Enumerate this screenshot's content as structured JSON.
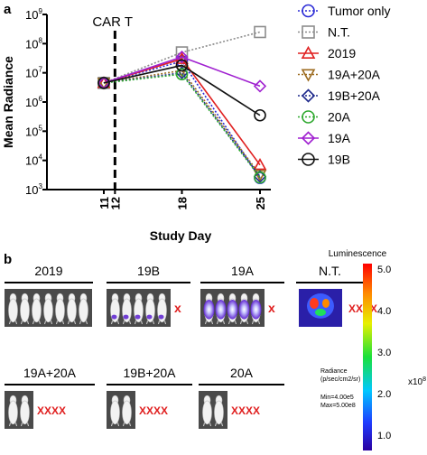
{
  "panel_a_label": "a",
  "panel_b_label": "b",
  "chart_data": {
    "type": "line",
    "title": "",
    "xlabel": "Study Day",
    "ylabel": "Mean Radiance",
    "log_y": true,
    "ylim": [
      1000,
      1000000000
    ],
    "y_ticks": [
      {
        "value": 1000,
        "base": "10",
        "exp": "3"
      },
      {
        "value": 10000,
        "base": "10",
        "exp": "4"
      },
      {
        "value": 100000,
        "base": "10",
        "exp": "5"
      },
      {
        "value": 1000000,
        "base": "10",
        "exp": "6"
      },
      {
        "value": 10000000,
        "base": "10",
        "exp": "7"
      },
      {
        "value": 100000000,
        "base": "10",
        "exp": "8"
      },
      {
        "value": 1000000000,
        "base": "10",
        "exp": "9"
      }
    ],
    "x": [
      11,
      18,
      25
    ],
    "x_ticks": [
      "11",
      "12",
      "18",
      "25"
    ],
    "x_tick_values": [
      11,
      12,
      18,
      25
    ],
    "annotation": {
      "text": "CAR T",
      "x": 12
    },
    "legend_position": "right",
    "series": [
      {
        "name": "Tumor only",
        "color": "#2b2bd6",
        "marker": "circle",
        "dash": "dotted",
        "values": [
          4500000,
          25000000,
          2500
        ]
      },
      {
        "name": "N.T.",
        "color": "#8c8c8c",
        "marker": "square",
        "dash": "dotted",
        "values": [
          4500000,
          50000000,
          250000000
        ]
      },
      {
        "name": "2019",
        "color": "#e02020",
        "marker": "triangle-up",
        "dash": "solid",
        "values": [
          4500000,
          30000000,
          7000
        ]
      },
      {
        "name": "19A+20A",
        "color": "#9c6b1f",
        "marker": "triangle-down",
        "dash": "dotted",
        "values": [
          4500000,
          12000000,
          3200
        ]
      },
      {
        "name": "19B+20A",
        "color": "#1f2a8c",
        "marker": "diamond",
        "dash": "dotted",
        "values": [
          4500000,
          10000000,
          2800
        ]
      },
      {
        "name": "20A",
        "color": "#2ea82e",
        "marker": "circle",
        "dash": "dotted",
        "values": [
          4500000,
          9000000,
          2600
        ]
      },
      {
        "name": "19A",
        "color": "#a020d0",
        "marker": "diamond",
        "dash": "solid",
        "values": [
          4500000,
          35000000,
          3500000
        ]
      },
      {
        "name": "19B",
        "color": "#111111",
        "marker": "circle",
        "dash": "solid",
        "values": [
          4500000,
          18000000,
          350000
        ]
      }
    ]
  },
  "imaging": {
    "groups_top": [
      {
        "label": "2019",
        "mice": 7,
        "tint": "none",
        "mark": ""
      },
      {
        "label": "19B",
        "mice": 5,
        "tint": "low",
        "mark": "x"
      },
      {
        "label": "19A",
        "mice": 5,
        "tint": "high",
        "mark": "x"
      },
      {
        "label": "N.T.",
        "mice": 1,
        "tint": "full",
        "mark": "XXXX"
      }
    ],
    "groups_bottom": [
      {
        "label": "19A+20A",
        "mice": 2,
        "tint": "none",
        "mark": "XXXX"
      },
      {
        "label": "19B+20A",
        "mice": 2,
        "tint": "none",
        "mark": "XXXX"
      },
      {
        "label": "20A",
        "mice": 2,
        "tint": "none",
        "mark": "XXXX"
      }
    ],
    "colorbar": {
      "title": "Luminescence",
      "ticks": [
        "5.0",
        "4.0",
        "3.0",
        "2.0",
        "1.0"
      ],
      "multiplier_base": "x10",
      "multiplier_exp": "8",
      "radiance_label_1": "Radiance",
      "radiance_label_2": "(p/sec/cm2/sr)",
      "min_text": "Min=4.00e5",
      "max_text": "Max=5.00e8"
    },
    "mark_color": "#e02020"
  }
}
